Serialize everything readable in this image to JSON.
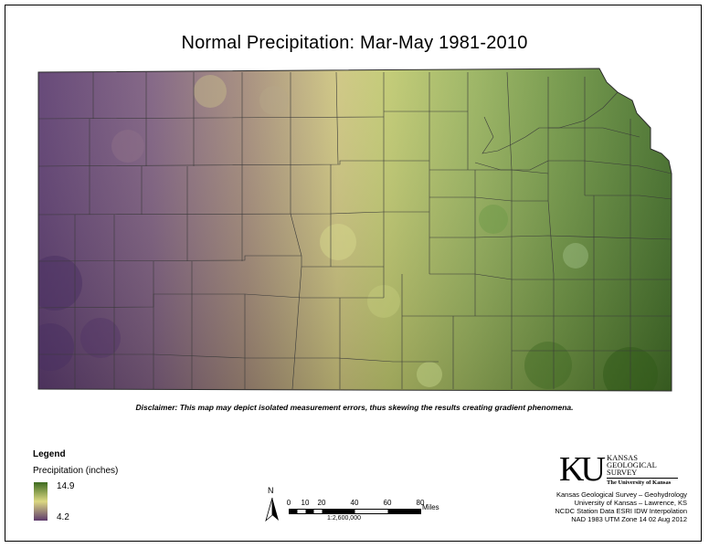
{
  "title": "Normal Precipitation:  Mar-May 1981-2010",
  "disclaimer": "Disclaimer: This map may depict isolated measurement errors, thus skewing the results creating gradient phenomena.",
  "legend": {
    "title": "Legend",
    "subtitle": "Precipitation (inches)",
    "max_label": "14.9",
    "min_label": "4.2",
    "color_high": "#3d6a1f",
    "color_mid": "#dcd882",
    "color_low": "#5e3a6c"
  },
  "north_arrow": {
    "label": "N"
  },
  "scale_bar": {
    "ticks": [
      "0",
      "10",
      "20",
      "40",
      "60",
      "80"
    ],
    "unit": "Miles",
    "ratio": "1:2,600,000"
  },
  "logo": {
    "mark": "KU",
    "line1": "KANSAS",
    "line2": "GEOLOGICAL",
    "line3": "SURVEY",
    "university": "The University of Kansas"
  },
  "credits": [
    "Kansas Geological Survey – Geohydrology",
    "University of Kansas – Lawrence, KS",
    "NCDC Station Data  ESRI IDW Interpolation",
    "NAD 1983 UTM Zone 14  02 Aug 2012"
  ]
}
